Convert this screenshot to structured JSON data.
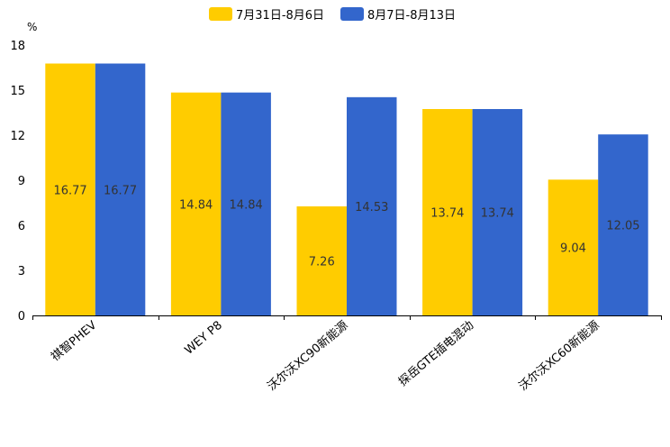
{
  "chart_data": {
    "type": "bar",
    "ylabel": "%",
    "ylim": [
      0,
      18
    ],
    "yticks": [
      "0",
      "3",
      "6",
      "9",
      "12",
      "15",
      "18"
    ],
    "legend_position": "top-center",
    "grid": false,
    "categories": [
      "祺智PHEV",
      "WEY P8",
      "沃尔沃XC90新能源",
      "探岳GTE插电混动",
      "沃尔沃XC60新能源"
    ],
    "series": [
      {
        "name": "7月31日-8月6日",
        "color": "#FFCC00",
        "values": [
          16.77,
          14.84,
          7.26,
          13.74,
          9.04
        ],
        "labels": [
          "16.77",
          "14.84",
          "7.26",
          "13.74",
          "9.04"
        ]
      },
      {
        "name": "8月7日-8月13日",
        "color": "#3366CC",
        "values": [
          16.77,
          14.84,
          14.53,
          13.74,
          12.05
        ],
        "labels": [
          "16.77",
          "14.84",
          "14.53",
          "13.74",
          "12.05"
        ]
      }
    ]
  }
}
